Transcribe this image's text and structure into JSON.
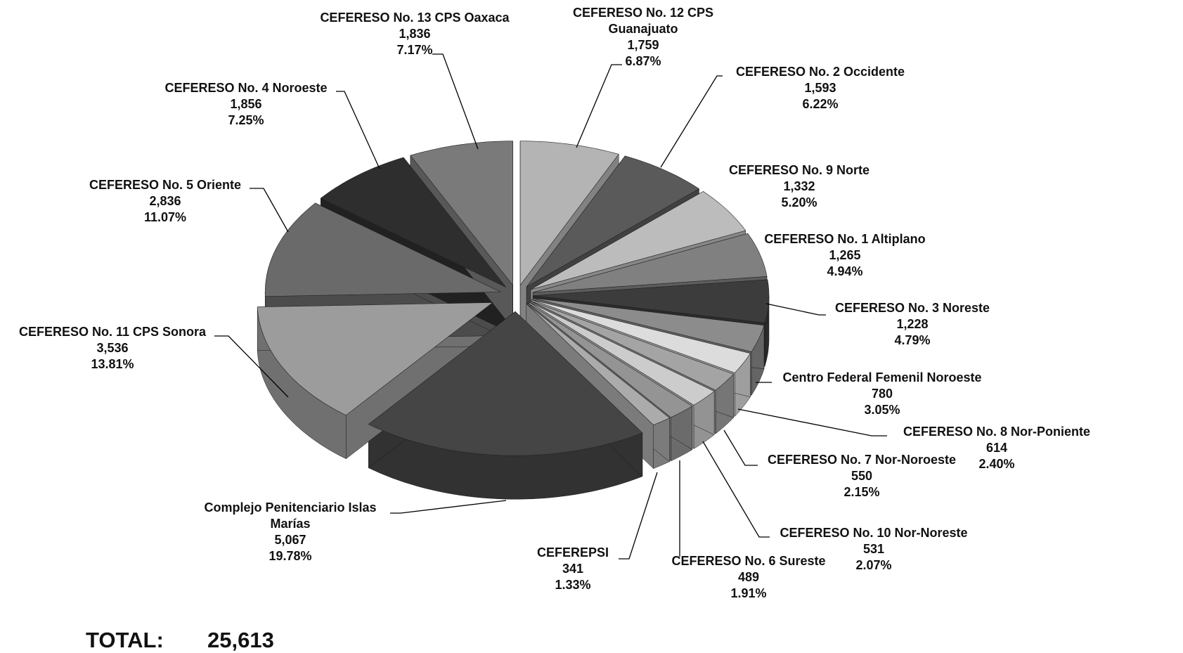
{
  "chart_data": {
    "type": "pie3d",
    "categories": [
      "CEFERESO No. 12 CPS Guanajuato",
      "CEFERESO No. 2 Occidente",
      "CEFERESO No. 9 Norte",
      "CEFERESO No. 1 Altiplano",
      "CEFERESO No. 3 Noreste",
      "Centro Federal Femenil Noroeste",
      "CEFERESO No. 8 Nor-Poniente",
      "CEFERESO No. 7 Nor-Noroeste",
      "CEFERESO No. 10 Nor-Noreste",
      "CEFERESO No. 6 Sureste",
      "CEFEREPSI",
      "Complejo Penitenciario Islas Marías",
      "CEFERESO No. 11 CPS Sonora",
      "CEFERESO No. 5 Oriente",
      "CEFERESO No. 4 Noroeste",
      "CEFERESO No. 13 CPS Oaxaca"
    ],
    "values": [
      1759,
      1593,
      1332,
      1265,
      1228,
      780,
      614,
      550,
      531,
      489,
      341,
      5067,
      3536,
      2836,
      1856,
      1836
    ],
    "value_labels": [
      "1,759",
      "1,593",
      "1,332",
      "1,265",
      "1,228",
      "780",
      "614",
      "550",
      "531",
      "489",
      "341",
      "5,067",
      "3,536",
      "2,836",
      "1,856",
      "1,836"
    ],
    "percent_labels": [
      "6.87%",
      "6.22%",
      "5.20%",
      "4.94%",
      "4.79%",
      "3.05%",
      "2.40%",
      "2.15%",
      "2.07%",
      "1.91%",
      "1.33%",
      "19.78%",
      "13.81%",
      "11.07%",
      "7.25%",
      "7.17%"
    ],
    "colors": [
      "#b4b4b4",
      "#5a5a5a",
      "#bcbcbc",
      "#808080",
      "#3c3c3c",
      "#8c8c8c",
      "#dcdcdc",
      "#a4a4a4",
      "#cccccc",
      "#949494",
      "#ababab",
      "#454545",
      "#9c9c9c",
      "#6a6a6a",
      "#2e2e2e",
      "#7a7a7a"
    ],
    "total_label": "TOTAL:",
    "total": {
      "value": 25613,
      "label": "25,613"
    }
  }
}
